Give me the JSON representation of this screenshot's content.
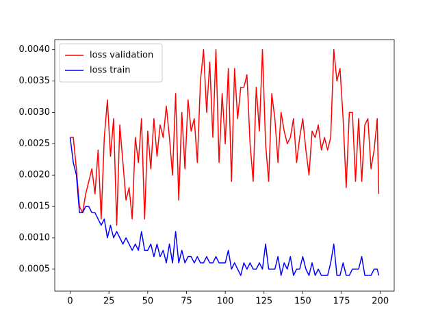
{
  "chart_data": {
    "type": "line",
    "x": [
      0,
      2,
      4,
      6,
      8,
      10,
      12,
      14,
      16,
      18,
      20,
      22,
      24,
      26,
      28,
      30,
      32,
      34,
      36,
      38,
      40,
      42,
      44,
      46,
      48,
      50,
      52,
      54,
      56,
      58,
      60,
      62,
      64,
      66,
      68,
      70,
      72,
      74,
      76,
      78,
      80,
      82,
      84,
      86,
      88,
      90,
      92,
      94,
      96,
      98,
      100,
      102,
      104,
      106,
      108,
      110,
      112,
      114,
      116,
      118,
      120,
      122,
      124,
      126,
      128,
      130,
      132,
      134,
      136,
      138,
      140,
      142,
      144,
      146,
      148,
      150,
      152,
      154,
      156,
      158,
      160,
      162,
      164,
      166,
      168,
      170,
      172,
      174,
      176,
      178,
      180,
      182,
      184,
      186,
      188,
      190,
      192,
      194,
      196,
      198,
      199
    ],
    "series": [
      {
        "name": "loss validation",
        "color": "#ff0000",
        "values": [
          0.0026,
          0.0026,
          0.0021,
          0.0015,
          0.0014,
          0.0017,
          0.0019,
          0.0021,
          0.0017,
          0.0024,
          0.0013,
          0.0026,
          0.0032,
          0.0023,
          0.0029,
          0.0012,
          0.0028,
          0.0022,
          0.0016,
          0.0018,
          0.0013,
          0.0026,
          0.0022,
          0.0029,
          0.0013,
          0.0027,
          0.0021,
          0.0029,
          0.0023,
          0.0028,
          0.0026,
          0.0031,
          0.0026,
          0.002,
          0.0033,
          0.0016,
          0.003,
          0.0021,
          0.0032,
          0.0027,
          0.0029,
          0.0022,
          0.0035,
          0.004,
          0.003,
          0.0038,
          0.0026,
          0.004,
          0.0022,
          0.0033,
          0.0025,
          0.0037,
          0.0019,
          0.0037,
          0.0029,
          0.0034,
          0.0034,
          0.0036,
          0.0025,
          0.0019,
          0.0034,
          0.0027,
          0.004,
          0.0025,
          0.0019,
          0.0033,
          0.0029,
          0.0022,
          0.003,
          0.0027,
          0.0025,
          0.0026,
          0.0029,
          0.0022,
          0.0026,
          0.0029,
          0.0024,
          0.002,
          0.0027,
          0.0026,
          0.0028,
          0.0024,
          0.0026,
          0.0024,
          0.0026,
          0.004,
          0.0035,
          0.0037,
          0.0029,
          0.0018,
          0.003,
          0.003,
          0.0019,
          0.0029,
          0.0019,
          0.0028,
          0.0029,
          0.0021,
          0.0024,
          0.0029,
          0.0017
        ]
      },
      {
        "name": "loss train",
        "color": "#0000ff",
        "values": [
          0.0026,
          0.0022,
          0.002,
          0.0014,
          0.0014,
          0.0015,
          0.0015,
          0.0014,
          0.0014,
          0.0013,
          0.0012,
          0.0013,
          0.001,
          0.0012,
          0.001,
          0.0011,
          0.001,
          0.0009,
          0.001,
          0.0009,
          0.0008,
          0.0009,
          0.0008,
          0.0011,
          0.0008,
          0.0008,
          0.0009,
          0.0007,
          0.0009,
          0.0007,
          0.0008,
          0.0006,
          0.0009,
          0.0006,
          0.0011,
          0.0006,
          0.0008,
          0.0006,
          0.0007,
          0.0007,
          0.0006,
          0.0007,
          0.0006,
          0.0006,
          0.0007,
          0.0006,
          0.0006,
          0.0007,
          0.0006,
          0.0006,
          0.0006,
          0.0008,
          0.0005,
          0.0006,
          0.0005,
          0.0004,
          0.0006,
          0.0005,
          0.0006,
          0.0005,
          0.0005,
          0.0006,
          0.0005,
          0.0009,
          0.0005,
          0.0005,
          0.0005,
          0.0007,
          0.0004,
          0.0006,
          0.0005,
          0.0007,
          0.0004,
          0.0005,
          0.0005,
          0.0007,
          0.0005,
          0.0004,
          0.0006,
          0.0004,
          0.0005,
          0.0004,
          0.0004,
          0.0004,
          0.0006,
          0.0009,
          0.0004,
          0.0004,
          0.0006,
          0.0004,
          0.0004,
          0.0005,
          0.0005,
          0.0005,
          0.0007,
          0.0004,
          0.0004,
          0.0004,
          0.0005,
          0.0005,
          0.0004
        ]
      }
    ],
    "xlim": [
      -9.95,
      208.95
    ],
    "xticks": [
      0,
      25,
      50,
      75,
      100,
      125,
      150,
      175,
      200
    ],
    "ylim": [
      0.00015,
      0.00416
    ],
    "yticks": [
      0.0005,
      {
        "value": 0.001,
        "label": "0.0010"
      },
      0.0015,
      {
        "value": 0.002,
        "label": "0.0020"
      },
      0.0025,
      {
        "value": 0.003,
        "label": "0.0030"
      },
      0.0035,
      {
        "value": 0.004,
        "label": "0.0040"
      }
    ],
    "grid": false,
    "legend": "upper left"
  }
}
